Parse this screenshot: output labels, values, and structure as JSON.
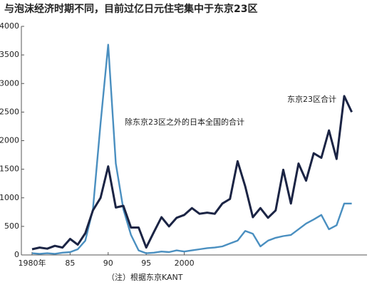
{
  "chart_data": {
    "type": "line",
    "title": "与泡沫经济时期不同，目前过亿日元住宅集中于东京23区",
    "footnote": "（注）根据东京KANT",
    "annotations": [
      "东京23区合计",
      "除东京23区之外的日本全国的合计"
    ],
    "x": [
      1980,
      1981,
      1982,
      1983,
      1984,
      1985,
      1986,
      1987,
      1988,
      1989,
      1990,
      1991,
      1992,
      1993,
      1994,
      1995,
      1996,
      1997,
      1998,
      1999,
      2000,
      2001,
      2002,
      2003,
      2004,
      2005,
      2006,
      2007,
      2008,
      2009,
      2010,
      2011,
      2012,
      2013,
      2014,
      2015,
      2016,
      2017,
      2018,
      2019,
      2020,
      2021,
      2022
    ],
    "series": [
      {
        "color": "#1b2444",
        "values": [
          100,
          130,
          110,
          160,
          130,
          280,
          180,
          380,
          780,
          1000,
          1550,
          830,
          860,
          480,
          480,
          130,
          400,
          660,
          500,
          650,
          700,
          820,
          720,
          740,
          720,
          900,
          980,
          1640,
          1200,
          660,
          820,
          650,
          780,
          1490,
          900,
          1600,
          1300,
          1780,
          1700,
          2180,
          1680,
          2780,
          2500
        ]
      },
      {
        "color": "#4a8fc0",
        "values": [
          30,
          20,
          30,
          20,
          40,
          50,
          100,
          250,
          800,
          2300,
          3680,
          1600,
          800,
          350,
          80,
          30,
          40,
          60,
          50,
          80,
          60,
          80,
          100,
          120,
          130,
          150,
          200,
          250,
          420,
          370,
          150,
          250,
          300,
          330,
          350,
          450,
          550,
          620,
          700,
          450,
          520,
          900,
          900
        ]
      }
    ],
    "xlim": [
      1978.6,
      2024
    ],
    "xticks": [
      {
        "value": 1980,
        "label": "1980年"
      },
      {
        "value": 1985,
        "label": "85"
      },
      {
        "value": 1990,
        "label": "90"
      },
      {
        "value": 1995,
        "label": "95"
      },
      {
        "value": 2000,
        "label": "2000"
      }
    ],
    "ylim": [
      0,
      4000
    ],
    "yticks": [
      0,
      500,
      1000,
      1500,
      2000,
      2500,
      3000,
      3500,
      4000
    ],
    "grid": false
  }
}
